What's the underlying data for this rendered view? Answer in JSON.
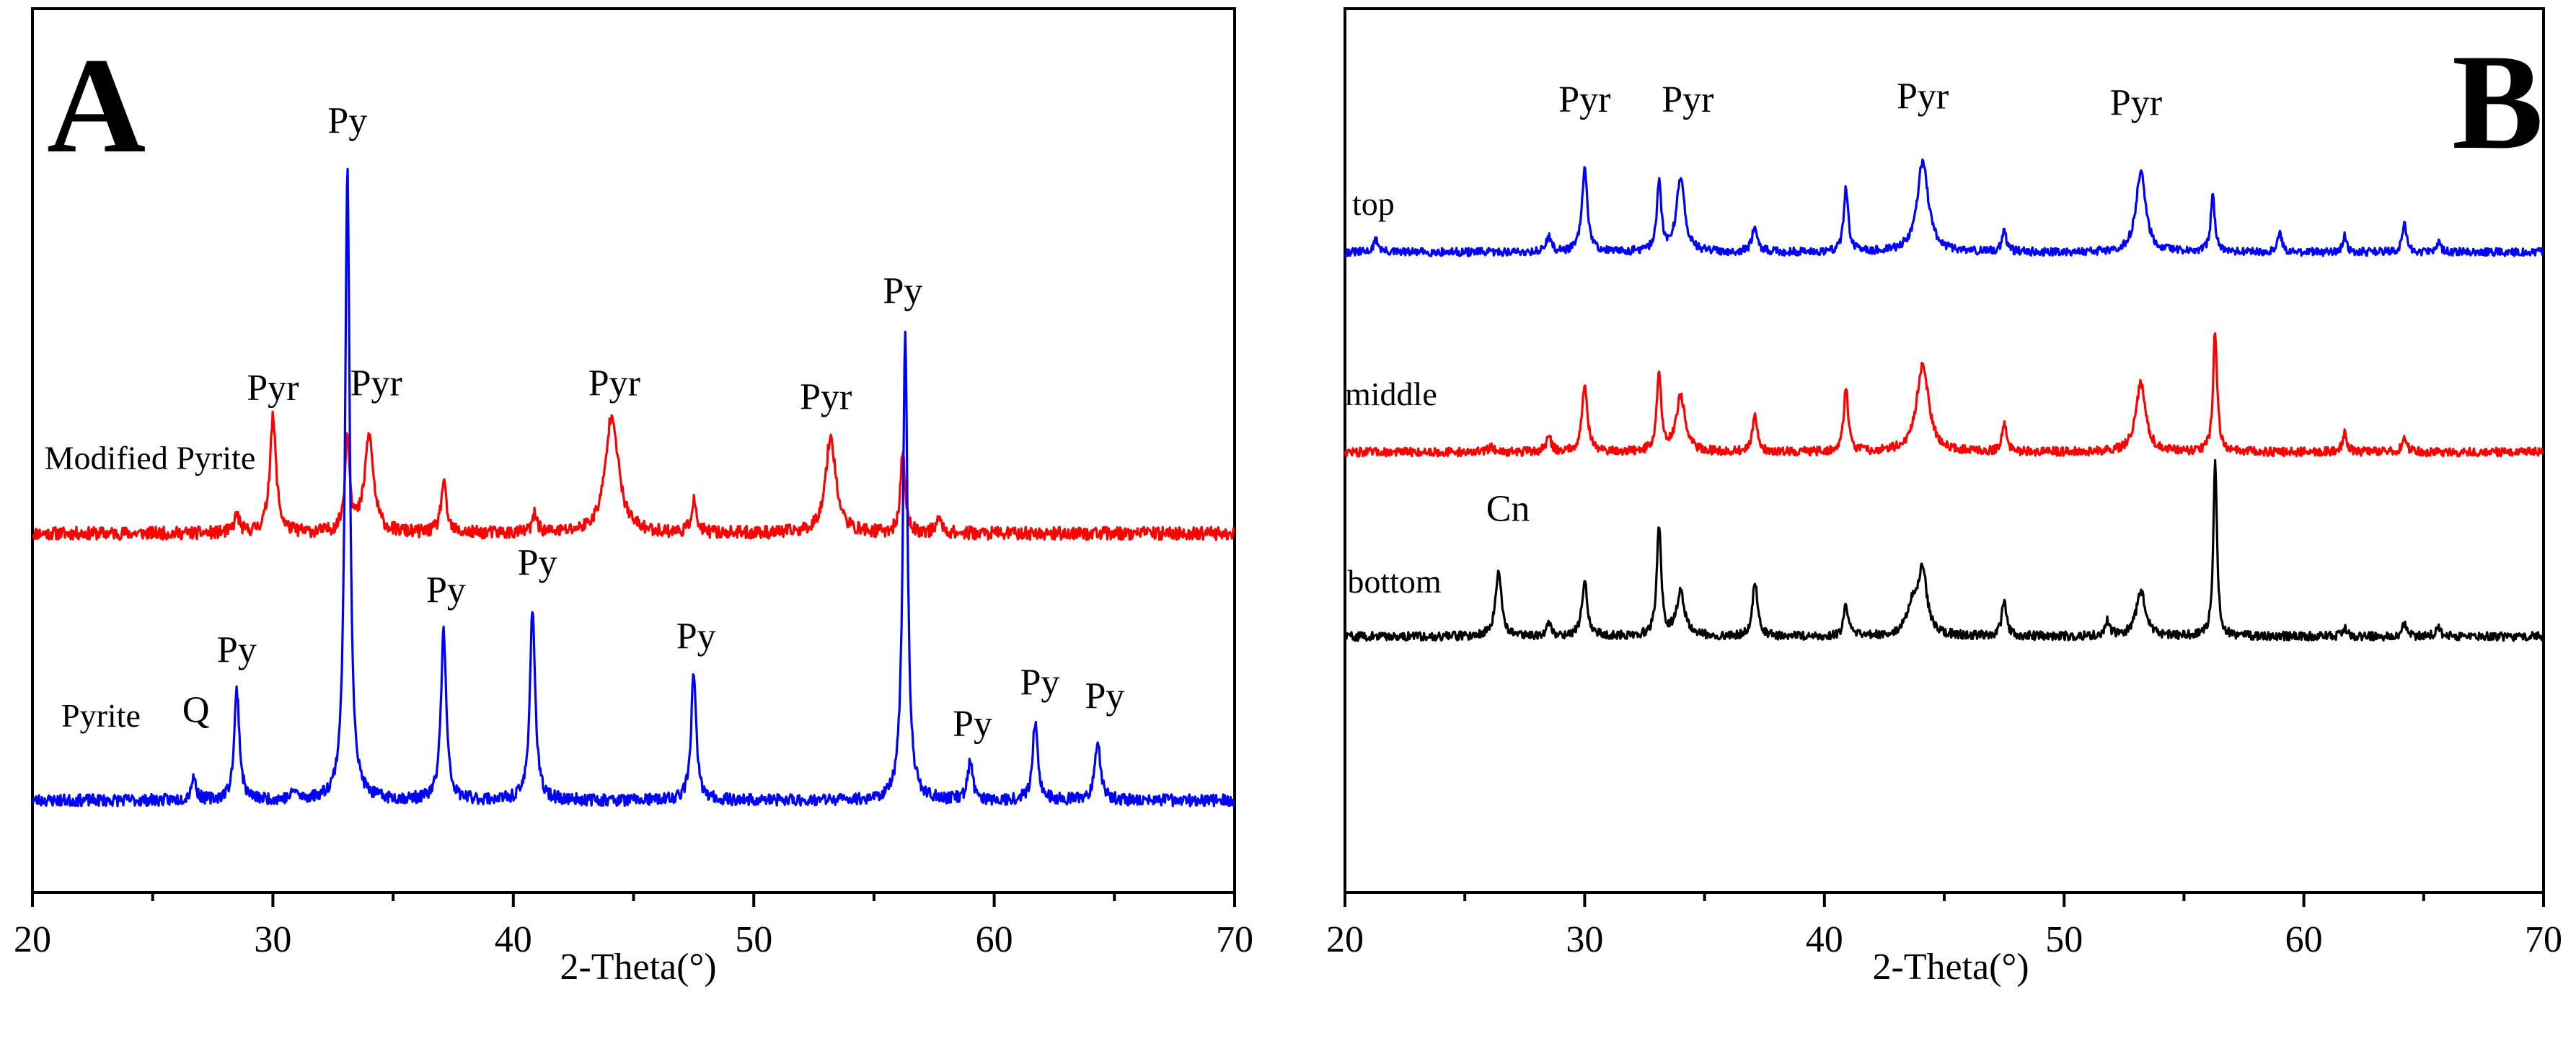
{
  "chart_data": [
    {
      "panel": "A",
      "type": "line",
      "xlabel": "2-Theta(°)",
      "ylabel": "",
      "xlim": [
        20,
        70
      ],
      "xticks": [
        20,
        30,
        40,
        50,
        60,
        70
      ],
      "grid": false,
      "series": [
        {
          "name": "Modified Pyrite",
          "color": "#ff0000",
          "baseline": 0.58,
          "noise": 0.014,
          "seed": 11,
          "peaks": [
            {
              "x": 28.5,
              "h": 0.04,
              "w": 0.12
            },
            {
              "x": 30.0,
              "h": 0.25,
              "w": 0.16
            },
            {
              "x": 33.1,
              "h": 0.21,
              "w": 0.12
            },
            {
              "x": 34.0,
              "h": 0.21,
              "w": 0.22
            },
            {
              "x": 37.1,
              "h": 0.11,
              "w": 0.13
            },
            {
              "x": 40.9,
              "h": 0.04,
              "w": 0.12
            },
            {
              "x": 44.1,
              "h": 0.26,
              "w": 0.32
            },
            {
              "x": 47.5,
              "h": 0.07,
              "w": 0.12
            },
            {
              "x": 53.2,
              "h": 0.21,
              "w": 0.26
            },
            {
              "x": 56.2,
              "h": 0.18,
              "w": 0.11
            },
            {
              "x": 57.7,
              "h": 0.03,
              "w": 0.15
            }
          ],
          "annotations": [
            {
              "text": "Pyr",
              "x": 30.0,
              "y": 0.87
            },
            {
              "text": "Pyr",
              "x": 34.3,
              "y": 0.88
            },
            {
              "text": "Pyr",
              "x": 44.2,
              "y": 0.88
            },
            {
              "text": "Pyr",
              "x": 53.0,
              "y": 0.85
            }
          ],
          "label_pos": [
            20.5,
            0.72
          ]
        },
        {
          "name": "Pyrite",
          "color": "#0000ff",
          "baseline": 0.0,
          "noise": 0.013,
          "seed": 23,
          "peaks": [
            {
              "x": 26.7,
              "h": 0.05,
              "w": 0.12
            },
            {
              "x": 28.5,
              "h": 0.24,
              "w": 0.13
            },
            {
              "x": 30.9,
              "h": 0.02,
              "w": 0.12
            },
            {
              "x": 33.1,
              "h": 1.37,
              "w": 0.12
            },
            {
              "x": 37.1,
              "h": 0.37,
              "w": 0.13
            },
            {
              "x": 40.8,
              "h": 0.42,
              "w": 0.13
            },
            {
              "x": 47.5,
              "h": 0.27,
              "w": 0.13
            },
            {
              "x": 56.3,
              "h": 1.01,
              "w": 0.12
            },
            {
              "x": 59.0,
              "h": 0.08,
              "w": 0.13
            },
            {
              "x": 61.7,
              "h": 0.17,
              "w": 0.13
            },
            {
              "x": 64.3,
              "h": 0.13,
              "w": 0.14
            }
          ],
          "annotations": [
            {
              "text": "Q",
              "x": 26.8,
              "y": 0.17
            },
            {
              "text": "Py",
              "x": 28.5,
              "y": 0.3
            },
            {
              "text": "Py",
              "x": 33.1,
              "y": 1.45
            },
            {
              "text": "Py",
              "x": 37.2,
              "y": 0.43
            },
            {
              "text": "Py",
              "x": 41.0,
              "y": 0.49
            },
            {
              "text": "Py",
              "x": 47.6,
              "y": 0.33
            },
            {
              "text": "Py",
              "x": 56.2,
              "y": 1.08
            },
            {
              "text": "Py",
              "x": 59.1,
              "y": 0.14
            },
            {
              "text": "Py",
              "x": 61.9,
              "y": 0.23
            },
            {
              "text": "Py",
              "x": 64.6,
              "y": 0.2
            }
          ],
          "label_pos": [
            21.2,
            0.16
          ]
        }
      ]
    },
    {
      "panel": "B",
      "type": "line",
      "xlabel": "2-Theta(°)",
      "ylabel": "",
      "xlim": [
        20,
        70
      ],
      "xticks": [
        20,
        30,
        40,
        50,
        60,
        70
      ],
      "grid": false,
      "series": [
        {
          "name": "top",
          "color": "#0000ff",
          "baseline": 1.5,
          "noise": 0.013,
          "seed": 31,
          "peaks": [
            {
              "x": 21.3,
              "h": 0.04,
              "w": 0.12
            },
            {
              "x": 28.5,
              "h": 0.05,
              "w": 0.12
            },
            {
              "x": 30.0,
              "h": 0.26,
              "w": 0.14
            },
            {
              "x": 33.1,
              "h": 0.22,
              "w": 0.11
            },
            {
              "x": 34.0,
              "h": 0.24,
              "w": 0.2
            },
            {
              "x": 37.1,
              "h": 0.09,
              "w": 0.12
            },
            {
              "x": 40.9,
              "h": 0.21,
              "w": 0.11
            },
            {
              "x": 44.1,
              "h": 0.29,
              "w": 0.28
            },
            {
              "x": 47.5,
              "h": 0.07,
              "w": 0.11
            },
            {
              "x": 53.2,
              "h": 0.26,
              "w": 0.24
            },
            {
              "x": 56.2,
              "h": 0.18,
              "w": 0.1
            },
            {
              "x": 59.0,
              "h": 0.06,
              "w": 0.1
            },
            {
              "x": 61.7,
              "h": 0.05,
              "w": 0.1
            },
            {
              "x": 64.2,
              "h": 0.09,
              "w": 0.11
            },
            {
              "x": 65.6,
              "h": 0.03,
              "w": 0.12
            }
          ],
          "annotations": [
            {
              "text": "Pyr",
              "x": 30.0,
              "y": 1.95
            },
            {
              "text": "Pyr",
              "x": 34.3,
              "y": 1.95
            },
            {
              "text": "Pyr",
              "x": 44.1,
              "y": 1.96
            },
            {
              "text": "Pyr",
              "x": 53.0,
              "y": 1.94
            }
          ],
          "label_pos": [
            20.3,
            1.62
          ]
        },
        {
          "name": "middle",
          "color": "#ff0000",
          "baseline": 0.86,
          "noise": 0.014,
          "seed": 47,
          "peaks": [
            {
              "x": 26.1,
              "h": 0.02,
              "w": 0.12
            },
            {
              "x": 28.5,
              "h": 0.05,
              "w": 0.12
            },
            {
              "x": 30.0,
              "h": 0.21,
              "w": 0.14
            },
            {
              "x": 33.1,
              "h": 0.25,
              "w": 0.11
            },
            {
              "x": 34.0,
              "h": 0.18,
              "w": 0.22
            },
            {
              "x": 37.1,
              "h": 0.11,
              "w": 0.12
            },
            {
              "x": 40.9,
              "h": 0.21,
              "w": 0.11
            },
            {
              "x": 44.1,
              "h": 0.28,
              "w": 0.3
            },
            {
              "x": 47.5,
              "h": 0.09,
              "w": 0.11
            },
            {
              "x": 53.2,
              "h": 0.22,
              "w": 0.24
            },
            {
              "x": 56.3,
              "h": 0.39,
              "w": 0.1
            },
            {
              "x": 61.7,
              "h": 0.06,
              "w": 0.1
            },
            {
              "x": 64.2,
              "h": 0.05,
              "w": 0.11
            }
          ],
          "annotations": [],
          "label_pos": [
            20.0,
            1.01
          ]
        },
        {
          "name": "bottom",
          "color": "#000000",
          "baseline": 0.27,
          "noise": 0.014,
          "seed": 59,
          "peaks": [
            {
              "x": 26.4,
              "h": 0.21,
              "w": 0.15
            },
            {
              "x": 28.5,
              "h": 0.04,
              "w": 0.12
            },
            {
              "x": 30.0,
              "h": 0.17,
              "w": 0.14
            },
            {
              "x": 33.1,
              "h": 0.35,
              "w": 0.11
            },
            {
              "x": 34.0,
              "h": 0.14,
              "w": 0.2
            },
            {
              "x": 37.1,
              "h": 0.18,
              "w": 0.12
            },
            {
              "x": 40.9,
              "h": 0.1,
              "w": 0.11
            },
            {
              "x": 43.7,
              "h": 0.1,
              "w": 0.3
            },
            {
              "x": 44.1,
              "h": 0.2,
              "w": 0.2
            },
            {
              "x": 47.5,
              "h": 0.12,
              "w": 0.11
            },
            {
              "x": 51.8,
              "h": 0.05,
              "w": 0.12
            },
            {
              "x": 53.2,
              "h": 0.15,
              "w": 0.22
            },
            {
              "x": 56.3,
              "h": 0.57,
              "w": 0.09
            },
            {
              "x": 61.7,
              "h": 0.03,
              "w": 0.1
            },
            {
              "x": 64.2,
              "h": 0.04,
              "w": 0.11
            },
            {
              "x": 65.6,
              "h": 0.03,
              "w": 0.12
            }
          ],
          "annotations": [
            {
              "text": "Cn",
              "x": 26.8,
              "y": 0.64
            }
          ],
          "label_pos": [
            20.1,
            0.41
          ]
        }
      ]
    }
  ]
}
